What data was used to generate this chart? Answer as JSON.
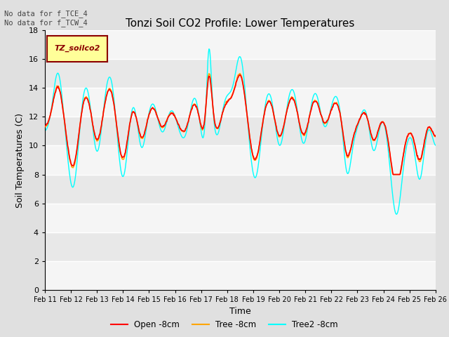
{
  "title": "Tonzi Soil CO2 Profile: Lower Temperatures",
  "xlabel": "Time",
  "ylabel": "Soil Temperatures (C)",
  "ylim": [
    0,
    18
  ],
  "yticks": [
    0,
    2,
    4,
    6,
    8,
    10,
    12,
    14,
    16,
    18
  ],
  "xtick_labels": [
    "Feb 11",
    "Feb 12",
    "Feb 13",
    "Feb 14",
    "Feb 15",
    "Feb 16",
    "Feb 17",
    "Feb 18",
    "Feb 19",
    "Feb 20",
    "Feb 21",
    "Feb 22",
    "Feb 23",
    "Feb 24",
    "Feb 25",
    "Feb 26"
  ],
  "legend_labels": [
    "Open -8cm",
    "Tree -8cm",
    "Tree2 -8cm"
  ],
  "legend_colors": [
    "red",
    "orange",
    "cyan"
  ],
  "annotation_text": "No data for f_TCE_4\nNo data for f_TCW_4",
  "inset_label": "TZ_soilco2",
  "inset_label_color": "#8B0000",
  "inset_bg_color": "#FFFF99",
  "fig_bg_color": "#E0E0E0",
  "plot_bg_light": "#F5F5F5",
  "plot_bg_dark": "#E8E8E8",
  "grid_color": "white",
  "title_fontsize": 11,
  "axis_fontsize": 9,
  "tick_fontsize": 8
}
